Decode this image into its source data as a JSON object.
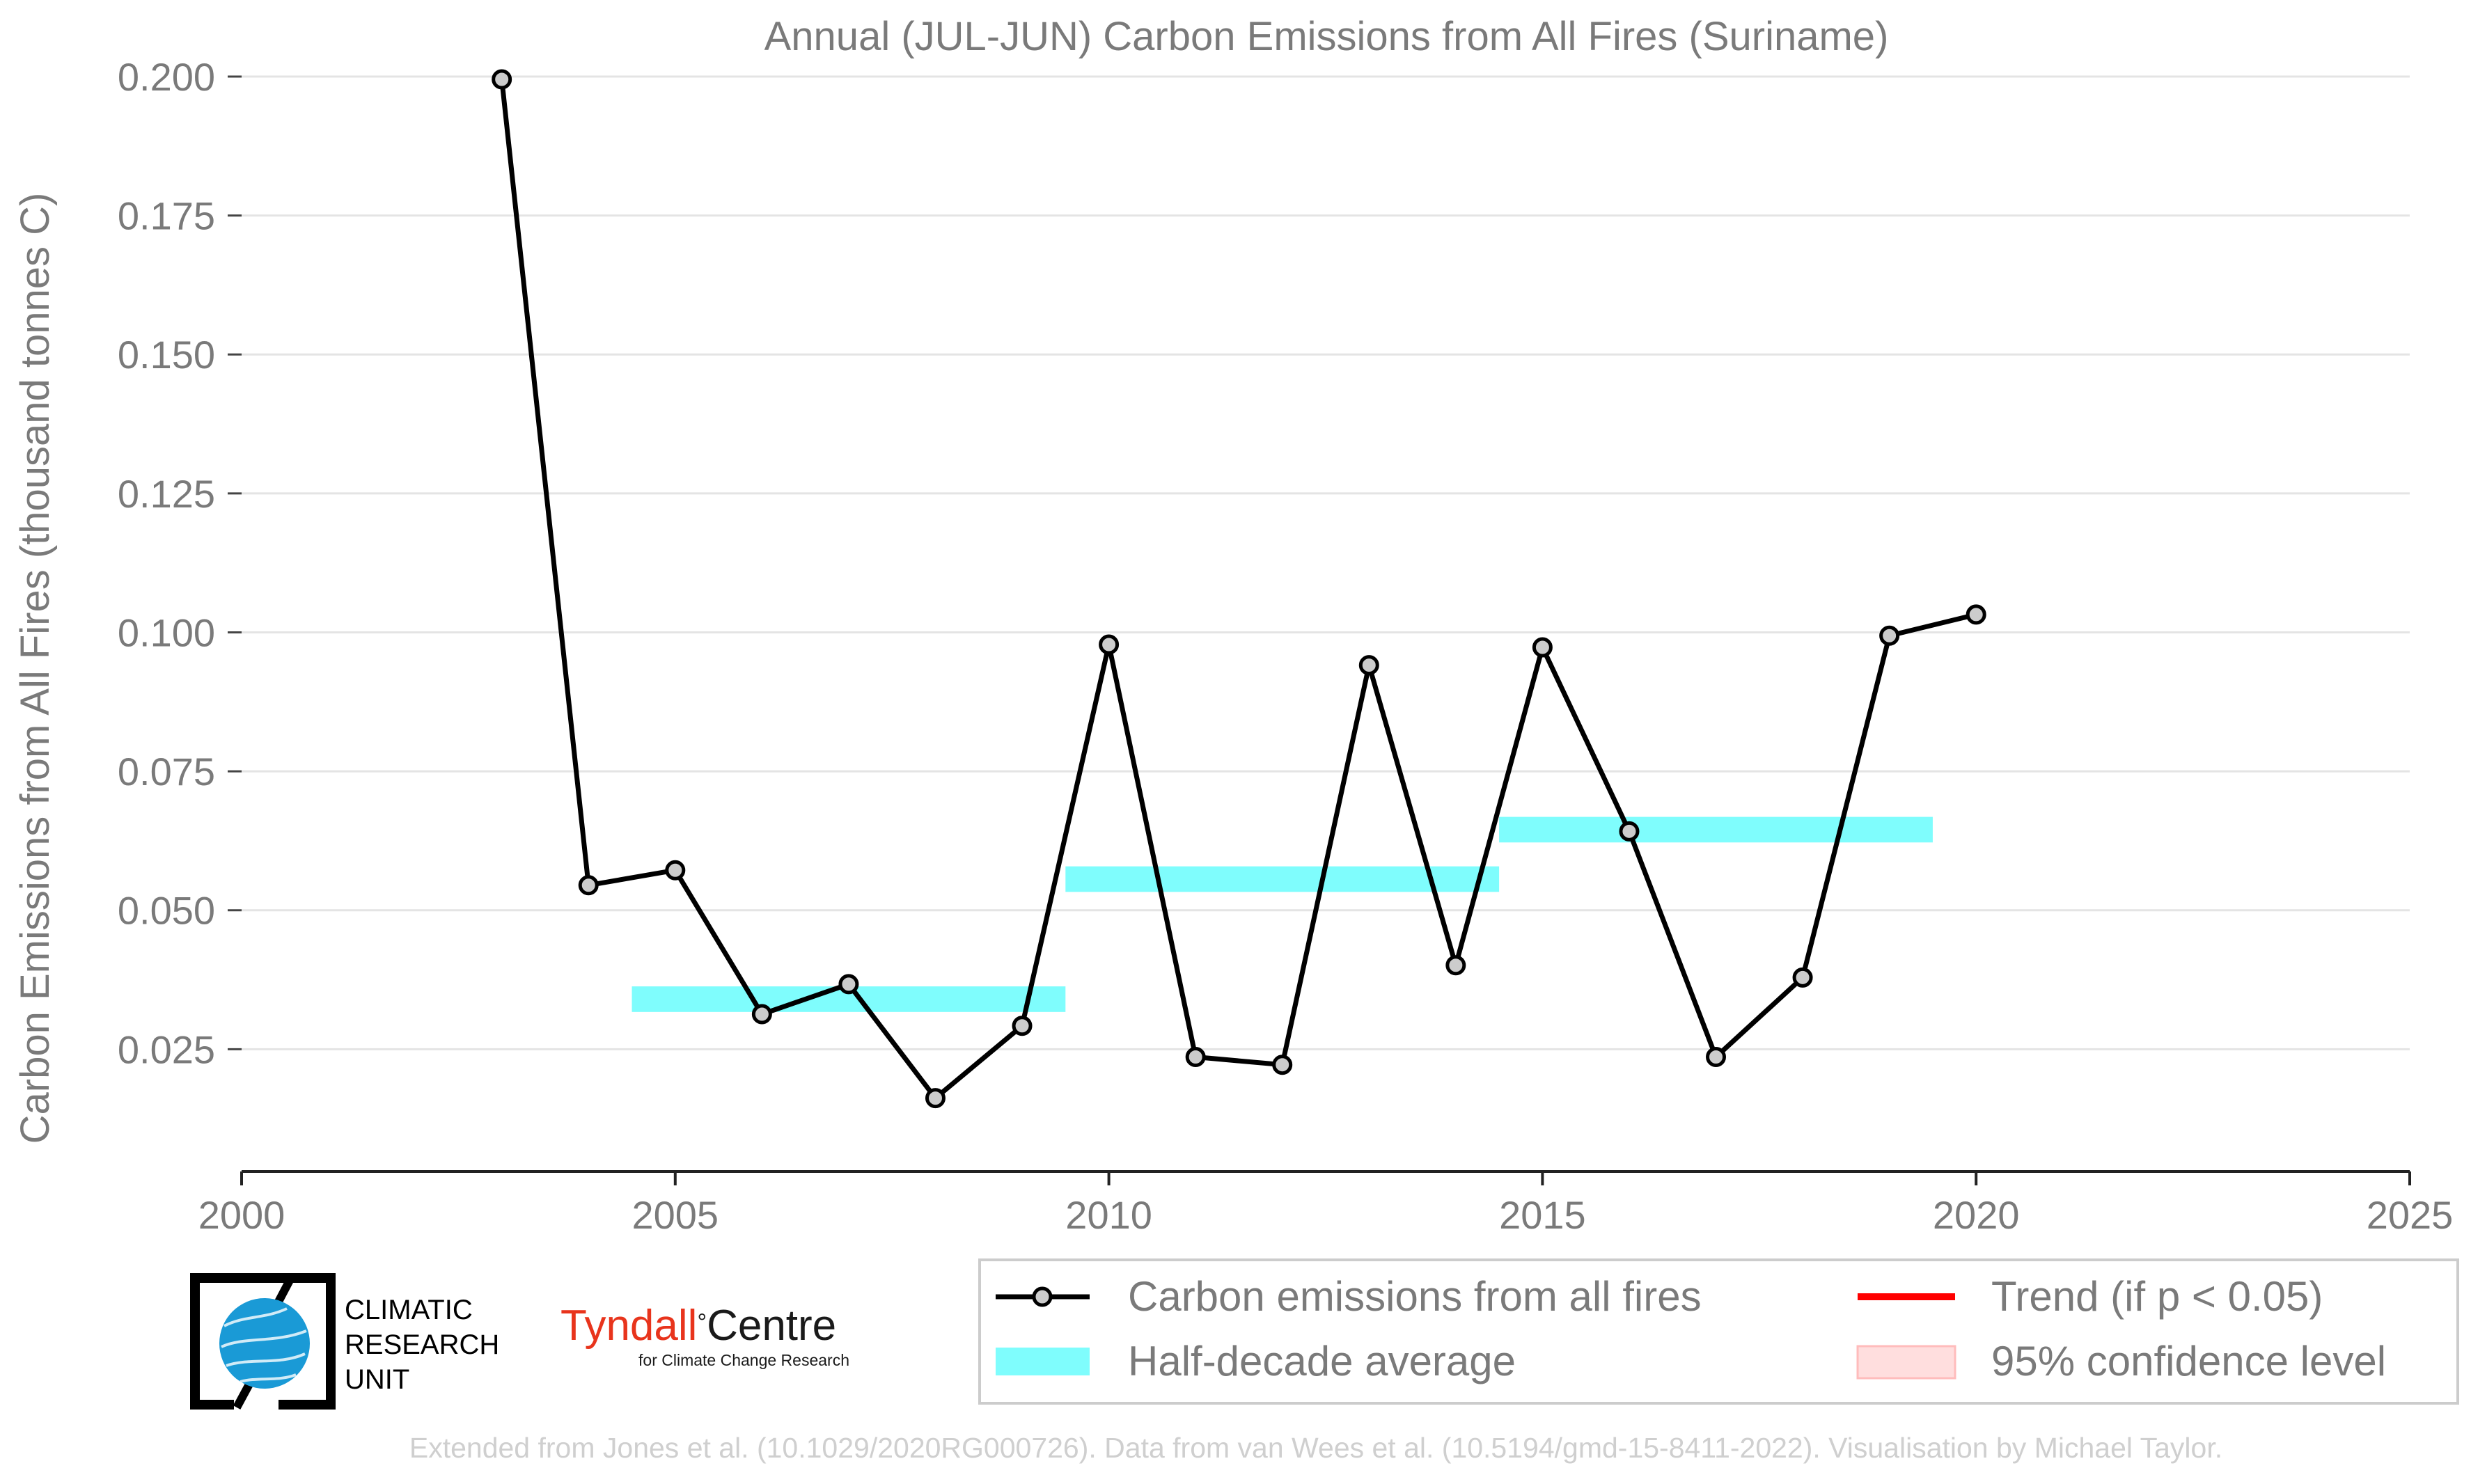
{
  "chart_data": {
    "type": "line",
    "title": "Annual (JUL-JUN) Carbon Emissions from All Fires (Suriname)",
    "xlabel": "",
    "ylabel": "Carbon Emissions from All Fires (thousand tonnes C)",
    "xlim": [
      2000,
      2025
    ],
    "ylim": [
      0.003,
      0.2
    ],
    "x_ticks": [
      "2000",
      "2005",
      "2010",
      "2015",
      "2020",
      "2025"
    ],
    "y_ticks": [
      "0.025",
      "0.050",
      "0.075",
      "0.100",
      "0.125",
      "0.150",
      "0.175",
      "0.200"
    ],
    "grid": "horizontal",
    "series": [
      {
        "name": "Carbon emissions from all fires",
        "color": "#000000",
        "marker_fill": "#cccccc",
        "x": [
          2003,
          2004,
          2005,
          2006,
          2007,
          2008,
          2009,
          2010,
          2011,
          2012,
          2013,
          2014,
          2015,
          2016,
          2017,
          2018,
          2019,
          2020
        ],
        "y": [
          0.1995,
          0.0545,
          0.0572,
          0.0313,
          0.0367,
          0.0162,
          0.0292,
          0.0978,
          0.0236,
          0.0222,
          0.0941,
          0.0401,
          0.0973,
          0.0642,
          0.0236,
          0.0379,
          0.0994,
          0.1032
        ]
      }
    ],
    "half_decade_averages": {
      "name": "Half-decade average",
      "color": "#7ffdfd",
      "segments": [
        {
          "x_start": 2004.5,
          "x_end": 2009.5,
          "value": 0.034
        },
        {
          "x_start": 2009.5,
          "x_end": 2014.5,
          "value": 0.0556
        },
        {
          "x_start": 2014.5,
          "x_end": 2019.5,
          "value": 0.0645
        }
      ]
    },
    "legend": {
      "position": "bottom-right",
      "entries": [
        {
          "label": "Carbon emissions from all fires",
          "kind": "line-marker",
          "color": "#000000"
        },
        {
          "label": "Trend (if p < 0.05)",
          "kind": "line",
          "color": "#ff0000"
        },
        {
          "label": "Half-decade average",
          "kind": "band",
          "color": "#7ffdfd"
        },
        {
          "label": "95% confidence level",
          "kind": "patch",
          "color": "#ffdede"
        }
      ]
    }
  },
  "logos": {
    "cru": {
      "line1": "CLIMATIC",
      "line2": "RESEARCH",
      "line3": "UNIT"
    },
    "tyndall": {
      "name_red": "Tyndall",
      "degree": "°",
      "name_black": "Centre",
      "subtitle": "for Climate Change Research"
    }
  },
  "footer": "Extended from Jones et al. (10.1029/2020RG000726). Data from van Wees et al. (10.5194/gmd-15-8411-2022). Visualisation by Michael Taylor."
}
